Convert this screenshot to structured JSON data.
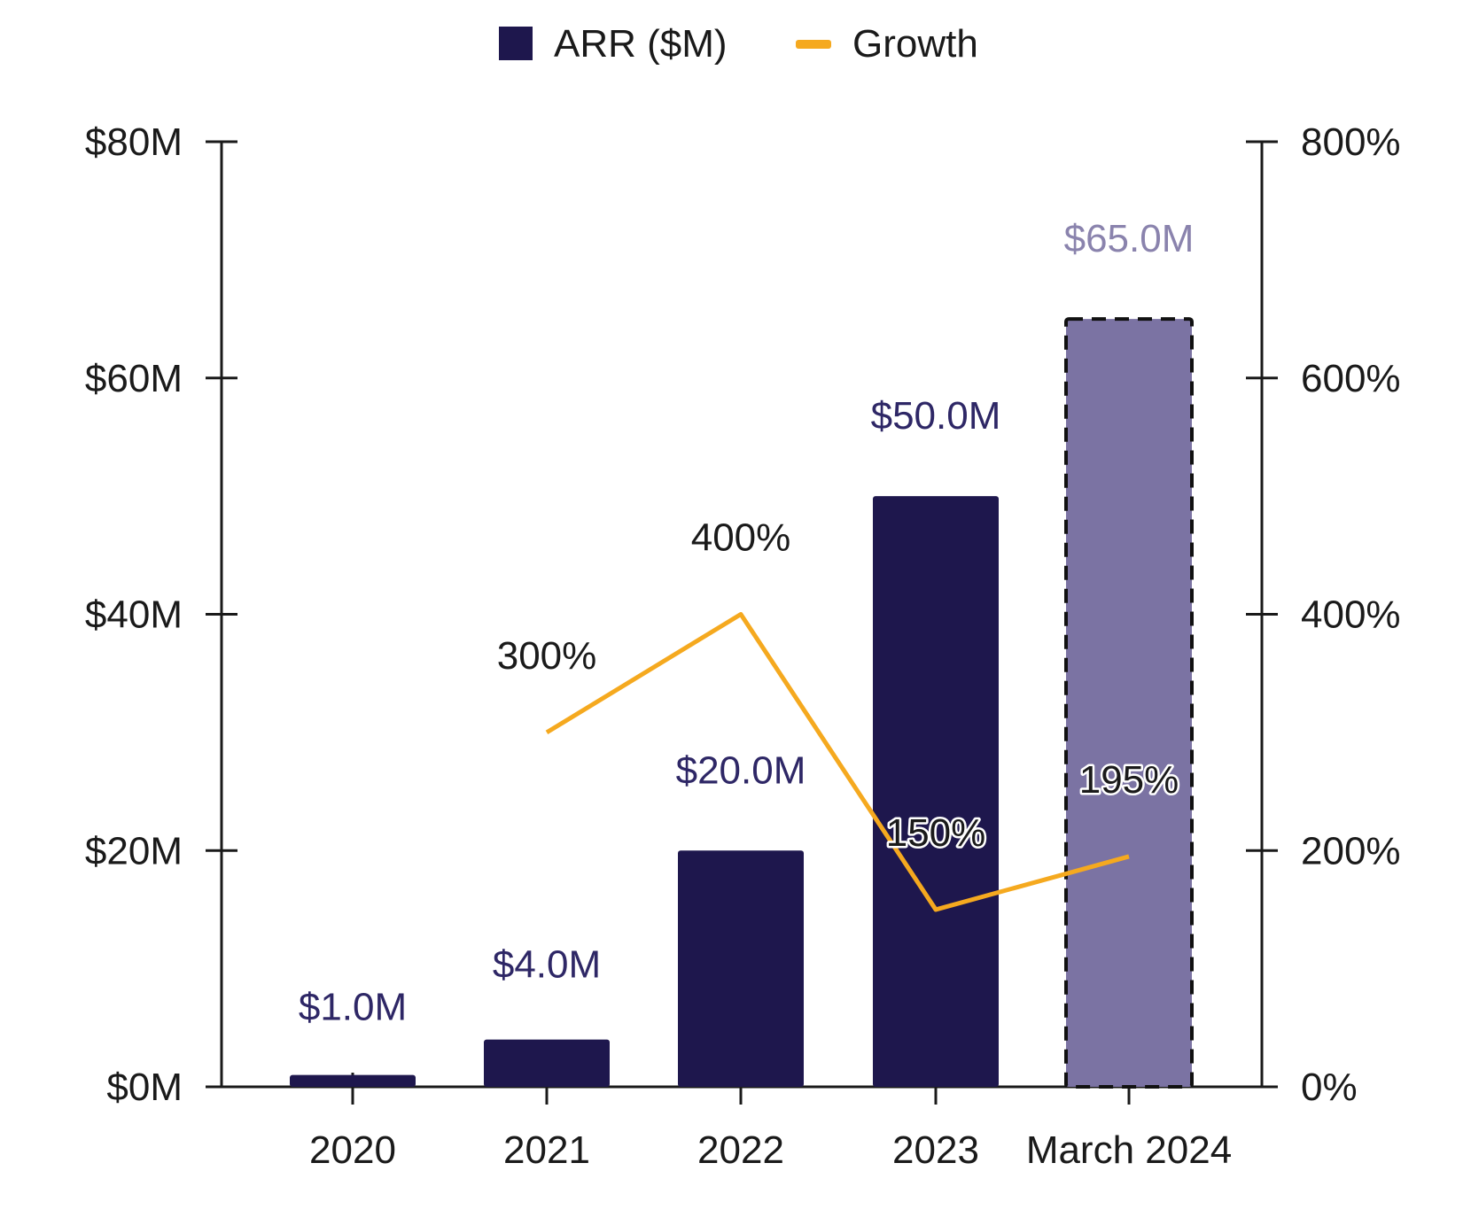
{
  "chart_data": {
    "type": "bar",
    "categories": [
      "2020",
      "2021",
      "2022",
      "2023",
      "March 2024"
    ],
    "series": [
      {
        "name": "ARR ($M)",
        "type": "bar",
        "axis": "left",
        "values": [
          1.0,
          4.0,
          20.0,
          50.0,
          65.0
        ],
        "labels": [
          "$1.0M",
          "$4.0M",
          "$20.0M",
          "$50.0M",
          "$65.0M"
        ],
        "color": "#1e174d",
        "projected_color": "#7b73a3",
        "projected_index": 4
      },
      {
        "name": "Growth",
        "type": "line",
        "axis": "right",
        "values": [
          null,
          300,
          400,
          150,
          195
        ],
        "labels": [
          "",
          "300%",
          "400%",
          "150%",
          "195%"
        ],
        "color": "#f5a91f"
      }
    ],
    "y_left": {
      "ylim": [
        0,
        80
      ],
      "ticks": [
        "$0M",
        "$20M",
        "$40M",
        "$60M",
        "$80M"
      ],
      "tick_values": [
        0,
        20,
        40,
        60,
        80
      ]
    },
    "y_right": {
      "ylim": [
        0,
        800
      ],
      "ticks": [
        "0%",
        "200%",
        "400%",
        "600%",
        "800%"
      ],
      "tick_values": [
        0,
        200,
        400,
        600,
        800
      ]
    },
    "legend": {
      "position": "top-center",
      "entries": [
        "ARR ($M)",
        "Growth"
      ]
    },
    "grid": false,
    "colors": {
      "axis": "#1a1a1a",
      "bar_label": "#2e2766",
      "projected_label": "#8a83ad",
      "text": "#1a1a1a"
    }
  }
}
